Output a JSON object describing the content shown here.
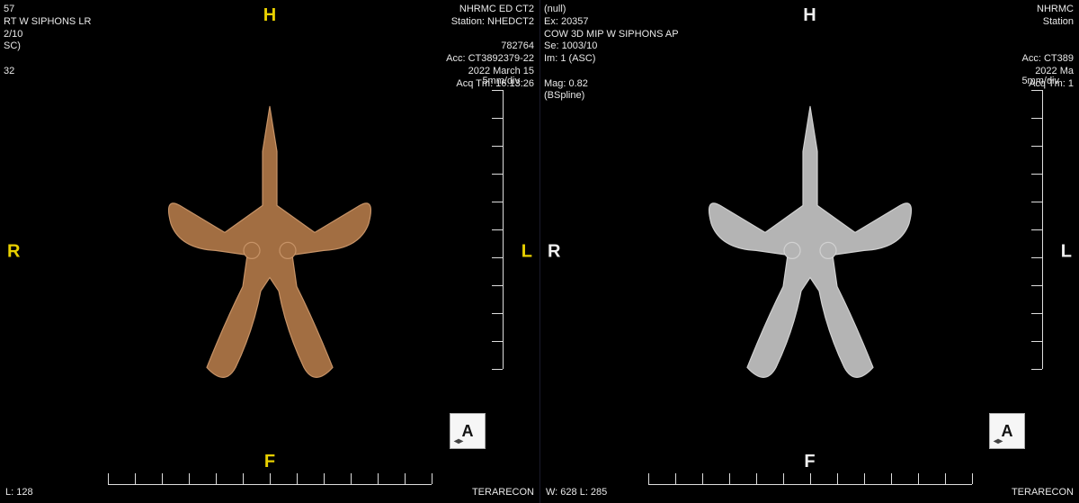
{
  "colors": {
    "bg": "#000000",
    "text": "#e8e8e8",
    "orient_yellow": "#e8d000",
    "orient_white": "#f0f0f0",
    "ruler": "#dddddd",
    "cube_bg": "#f6f6f6",
    "cube_fg": "#111111",
    "sil_left_fill": "#b07848",
    "sil_left_stroke": "#d8a070",
    "sil_right_fill": "#c8c8c8",
    "sil_right_stroke": "#e8e8e8"
  },
  "ruler": {
    "label": "5mm/div",
    "v_ticks": 11,
    "h_ticks": 13
  },
  "left": {
    "orient": {
      "top": "H",
      "left": "R",
      "right": "L",
      "bottom": "F",
      "color": "#e8d000"
    },
    "cube_letter": "A",
    "tl_lines": [
      "57",
      "RT W SIPHONS LR",
      "2/10",
      "SC)",
      "",
      "32"
    ],
    "tr_lines": [
      "NHRMC ED CT2",
      "Station: NHEDCT2",
      "",
      "782764",
      "Acc: CT3892379-22",
      "2022 March 15",
      "Acq Tm: 16:13:26"
    ],
    "bl_lines": [
      "L: 128"
    ],
    "br_lines": [
      "TERARECON"
    ]
  },
  "right": {
    "orient": {
      "top": "H",
      "left": "R",
      "right": "L",
      "bottom": "F",
      "color": "#f0f0f0"
    },
    "cube_letter": "A",
    "tl_lines": [
      "(null)",
      "Ex: 20357",
      "COW 3D MIP W SIPHONS AP",
      "Se: 1003/10",
      "Im: 1 (ASC)",
      "",
      "Mag: 0.82",
      "(BSpline)"
    ],
    "tr_lines": [
      "NHRMC",
      "Station",
      "",
      "",
      "Acc: CT389",
      "2022 Ma",
      "Acq Tm: 1"
    ],
    "bl_lines": [
      "W: 628 L: 285"
    ],
    "br_lines": [
      "TERARECON"
    ]
  }
}
